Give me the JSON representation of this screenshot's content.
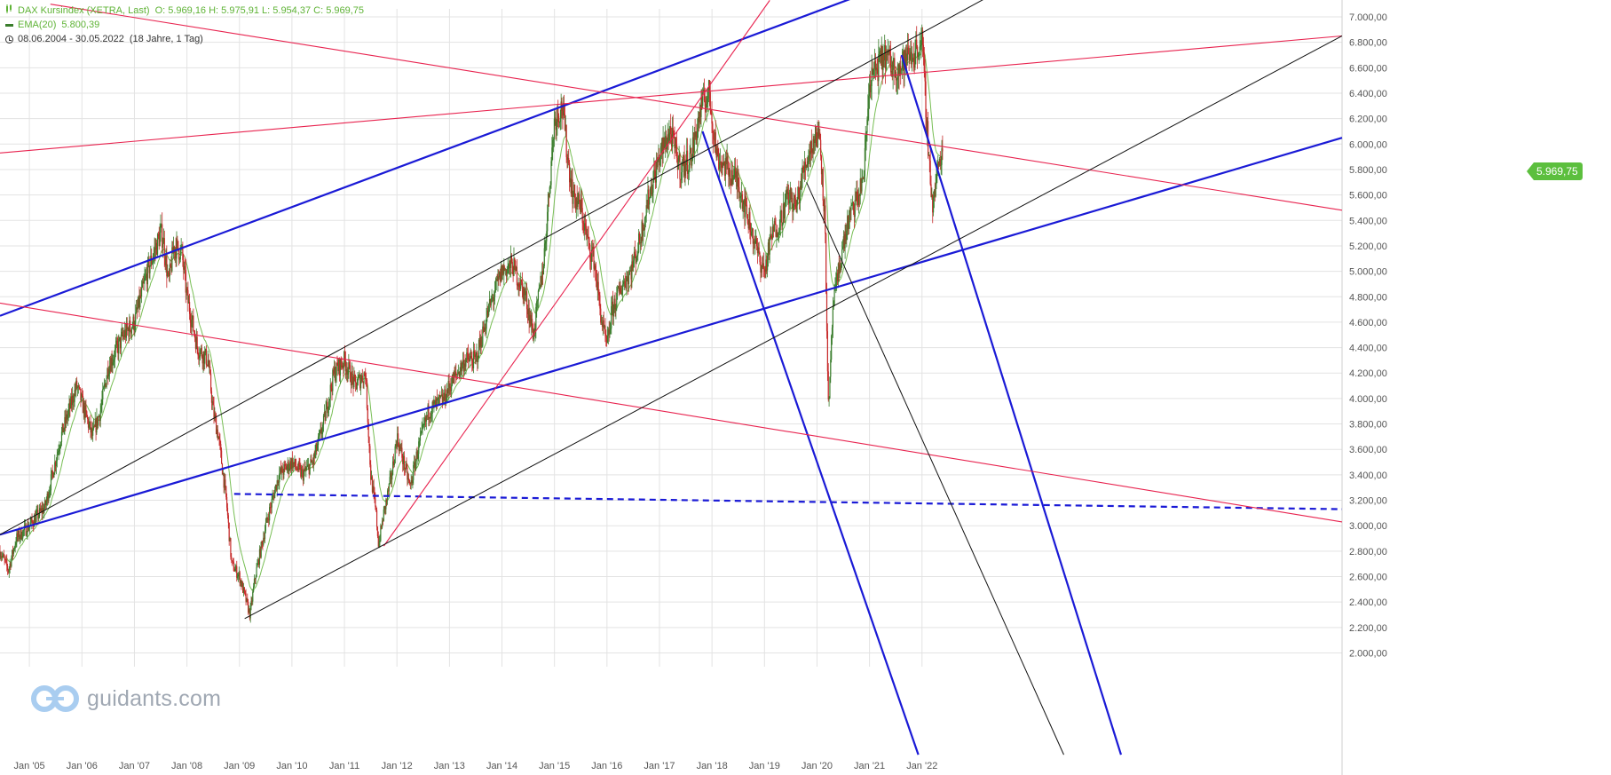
{
  "legend": {
    "instrument": "DAX Kursindex (XETRA, Last)",
    "ohlc": "O: 5.969,16   H: 5.975,91   L: 5.954,37   C: 5.969,75",
    "indicator": "EMA(20)",
    "indicator_value": "5.800,39",
    "date_range": "08.06.2004 - 30.05.2022",
    "period": "(18 Jahre, 1 Tag)"
  },
  "last_price": "5.969,75",
  "brand": "guidants.com",
  "colors": {
    "up": "#3a7d2c",
    "down": "#c62828",
    "ema": "#5fb336",
    "blue_line": "#1a1ad6",
    "red_line": "#e8234f",
    "black_line": "#111111",
    "price_tag": "#5cbf3e",
    "grid": "#e3e3e3"
  },
  "chart_data": {
    "type": "line",
    "subtype": "candlestick",
    "x_axis": {
      "type": "date",
      "range": [
        "2004-06-08",
        "2022-05-30"
      ],
      "tick_labels": [
        "Jan '05",
        "Jan '06",
        "Jan '07",
        "Jan '08",
        "Jan '09",
        "Jan '10",
        "Jan '11",
        "Jan '12",
        "Jan '13",
        "Jan '14",
        "Jan '15",
        "Jan '16",
        "Jan '17",
        "Jan '18",
        "Jan '19",
        "Jan '20",
        "Jan '21",
        "Jan '22"
      ],
      "tick_years": [
        2005,
        2006,
        2007,
        2008,
        2009,
        2010,
        2011,
        2012,
        2013,
        2014,
        2015,
        2016,
        2017,
        2018,
        2019,
        2020,
        2021,
        2022
      ]
    },
    "y_axis": {
      "position": "right",
      "range": [
        2000,
        7000
      ],
      "ticks": [
        2000,
        2200,
        2400,
        2600,
        2800,
        3000,
        3200,
        3400,
        3600,
        3800,
        4000,
        4200,
        4400,
        4600,
        4800,
        5000,
        5200,
        5400,
        5600,
        5800,
        6000,
        6200,
        6400,
        6600,
        6800,
        7000
      ],
      "tick_labels": [
        "2.000,00",
        "2.200,00",
        "2.400,00",
        "2.600,00",
        "2.800,00",
        "3.000,00",
        "3.200,00",
        "3.400,00",
        "3.600,00",
        "3.800,00",
        "4.000,00",
        "4.200,00",
        "4.400,00",
        "4.600,00",
        "4.800,00",
        "5.000,00",
        "5.200,00",
        "5.400,00",
        "5.600,00",
        "5.800,00",
        "6.000,00",
        "6.200,00",
        "6.400,00",
        "6.600,00",
        "6.800,00",
        "7.000,00"
      ]
    },
    "grid": true,
    "price_series": {
      "x": [
        2004.44,
        2004.6,
        2004.75,
        2005.0,
        2005.3,
        2005.6,
        2005.9,
        2006.2,
        2006.35,
        2006.5,
        2006.8,
        2007.0,
        2007.25,
        2007.5,
        2007.55,
        2007.65,
        2007.75,
        2007.9,
        2008.0,
        2008.2,
        2008.4,
        2008.5,
        2008.6,
        2008.75,
        2008.85,
        2009.0,
        2009.2,
        2009.3,
        2009.5,
        2009.75,
        2010.0,
        2010.2,
        2010.4,
        2010.6,
        2010.8,
        2011.0,
        2011.2,
        2011.4,
        2011.5,
        2011.6,
        2011.65,
        2011.75,
        2011.9,
        2012.0,
        2012.25,
        2012.4,
        2012.6,
        2012.9,
        2013.0,
        2013.3,
        2013.5,
        2013.75,
        2014.0,
        2014.2,
        2014.45,
        2014.6,
        2014.8,
        2015.0,
        2015.15,
        2015.25,
        2015.35,
        2015.5,
        2015.65,
        2015.75,
        2015.9,
        2016.0,
        2016.1,
        2016.3,
        2016.45,
        2016.6,
        2016.8,
        2017.0,
        2017.2,
        2017.4,
        2017.6,
        2017.8,
        2017.95,
        2018.0,
        2018.1,
        2018.3,
        2018.5,
        2018.7,
        2018.9,
        2019.0,
        2019.15,
        2019.3,
        2019.45,
        2019.6,
        2019.75,
        2019.9,
        2020.05,
        2020.15,
        2020.22,
        2020.3,
        2020.45,
        2020.6,
        2020.8,
        2020.9,
        2021.0,
        2021.15,
        2021.3,
        2021.45,
        2021.6,
        2021.75,
        2021.85,
        2021.95,
        2022.0,
        2022.1,
        2022.2,
        2022.3,
        2022.4
      ],
      "y": [
        2800,
        2650,
        2900,
        3000,
        3150,
        3700,
        4100,
        3700,
        3900,
        4250,
        4500,
        4600,
        5000,
        5300,
        5250,
        4900,
        5200,
        5150,
        4800,
        4400,
        4300,
        3900,
        3700,
        3200,
        2700,
        2600,
        2300,
        2600,
        3000,
        3400,
        3500,
        3400,
        3500,
        3800,
        4200,
        4300,
        4100,
        4200,
        3400,
        3100,
        2850,
        3100,
        3400,
        3700,
        3300,
        3600,
        3900,
        4000,
        4100,
        4300,
        4300,
        4700,
        5000,
        5050,
        4800,
        4500,
        5100,
        6200,
        6300,
        5900,
        5600,
        5500,
        5200,
        5100,
        4600,
        4400,
        4700,
        4900,
        5000,
        5200,
        5600,
        5900,
        6100,
        5800,
        5900,
        6300,
        6400,
        6200,
        5900,
        5800,
        5700,
        5400,
        5100,
        5000,
        5300,
        5400,
        5600,
        5500,
        5800,
        6000,
        6100,
        5400,
        3850,
        4700,
        5100,
        5400,
        5600,
        5800,
        6500,
        6600,
        6700,
        6600,
        6600,
        6700,
        6700,
        6800,
        6800,
        6100,
        5500,
        5800,
        5969.75
      ]
    },
    "trendlines": [
      {
        "color": "blue",
        "style": "solid",
        "x": [
          2004.44,
          2022.97
        ],
        "y": [
          4650,
          7500
        ]
      },
      {
        "color": "blue",
        "style": "solid",
        "x": [
          2004.44,
          2030.0
        ],
        "y": [
          2930,
          6050
        ]
      },
      {
        "color": "blue",
        "style": "dashed",
        "x": [
          2008.9,
          2030.0
        ],
        "y": [
          3250,
          3130
        ]
      },
      {
        "color": "blue",
        "style": "solid",
        "x": [
          2017.82,
          2021.93
        ],
        "y": [
          6100,
          1200
        ]
      },
      {
        "color": "blue",
        "style": "solid",
        "x": [
          2021.61,
          2025.79
        ],
        "y": [
          6700,
          1200
        ]
      },
      {
        "color": "red",
        "style": "solid",
        "x": [
          2004.44,
          2030.0
        ],
        "y": [
          5930,
          6850
        ]
      },
      {
        "color": "red",
        "style": "solid",
        "x": [
          2005.4,
          2030.0
        ],
        "y": [
          7100,
          5480
        ]
      },
      {
        "color": "red",
        "style": "solid",
        "x": [
          2004.44,
          2030.0
        ],
        "y": [
          4750,
          3030
        ]
      },
      {
        "color": "red",
        "style": "solid",
        "x": [
          2011.75,
          2019.1
        ],
        "y": [
          2840,
          7130
        ]
      },
      {
        "color": "black",
        "style": "solid",
        "x": [
          2004.44,
          2023.45
        ],
        "y": [
          2930,
          7200
        ]
      },
      {
        "color": "black",
        "style": "solid",
        "x": [
          2009.1,
          2030.0
        ],
        "y": [
          2270,
          6850
        ]
      },
      {
        "color": "black",
        "style": "solid",
        "x": [
          2019.8,
          2024.7
        ],
        "y": [
          5700,
          1200
        ]
      }
    ]
  }
}
